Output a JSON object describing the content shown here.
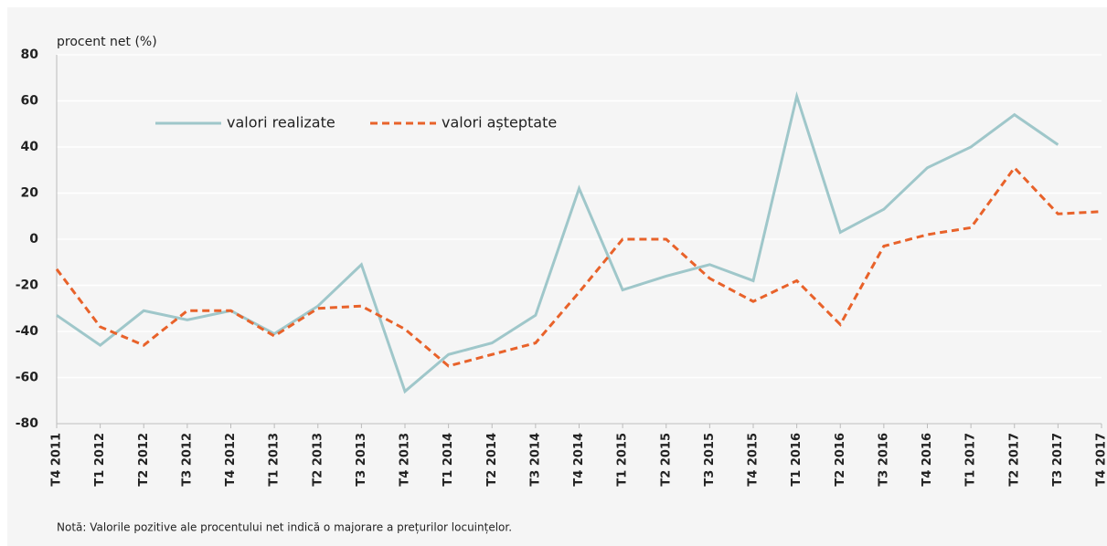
{
  "chart_data": {
    "type": "line",
    "y_axis_label": "procent net (%)",
    "categories": [
      "T4 2011",
      "T1 2012",
      "T2 2012",
      "T3 2012",
      "T4 2012",
      "T1 2013",
      "T2 2013",
      "T3 2013",
      "T4 2013",
      "T1 2014",
      "T2 2014",
      "T3 2014",
      "T4 2014",
      "T1 2015",
      "T2 2015",
      "T3 2015",
      "T4 2015",
      "T1 2016",
      "T2 2016",
      "T3 2016",
      "T4 2016",
      "T1 2017",
      "T2 2017",
      "T3 2017",
      "T4 2017"
    ],
    "series": [
      {
        "name": "valori realizate",
        "color": "#9fc7ca",
        "dashed": false,
        "values": [
          -33,
          -46,
          -31,
          -35,
          -31,
          -41,
          -29,
          -11,
          -66,
          -50,
          -45,
          -33,
          22,
          -22,
          -16,
          -11,
          -18,
          62,
          3,
          13,
          31,
          40,
          54,
          41,
          null
        ]
      },
      {
        "name": "valori așteptate",
        "color": "#e8622a",
        "dashed": true,
        "values": [
          -13,
          -38,
          -46,
          -31,
          -31,
          -42,
          -30,
          -29,
          -39,
          -55,
          -50,
          -45,
          -23,
          0,
          0,
          -17,
          -27,
          -18,
          -37,
          -3,
          2,
          5,
          31,
          11,
          12
        ]
      }
    ],
    "ylim": [
      -80,
      80
    ],
    "yticks": [
      -80,
      -60,
      -40,
      -20,
      0,
      20,
      40,
      60,
      80
    ],
    "grid": true,
    "note": "Notă: Valorile pozitive ale procentului net indică o majorare a prețurilor locuințelor."
  }
}
